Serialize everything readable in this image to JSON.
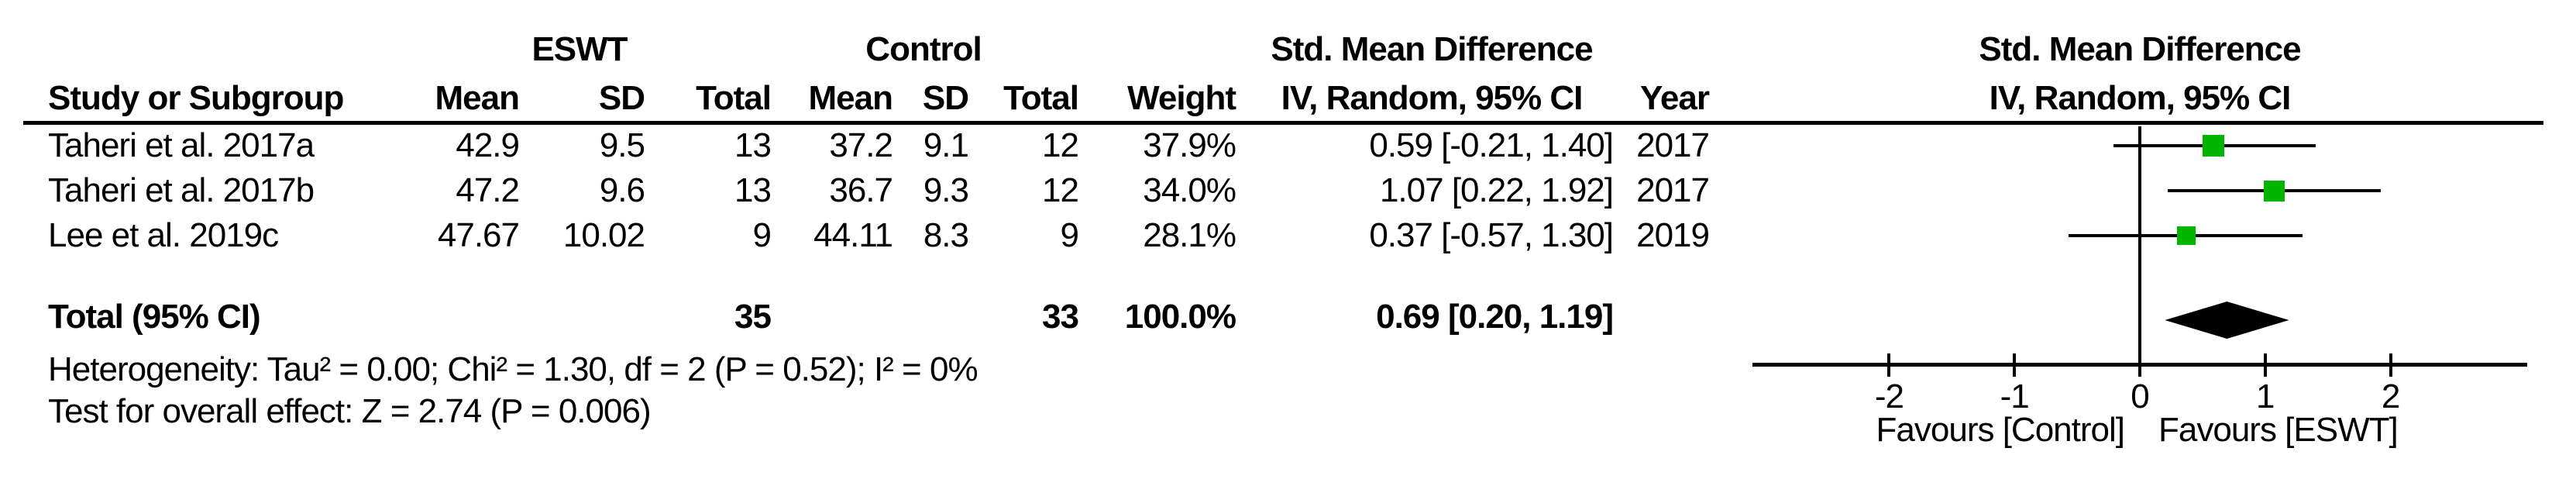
{
  "table": {
    "group1": "ESWT",
    "group2": "Control",
    "effect_header": "Std. Mean Difference",
    "method_header": "IV, Random, 95% CI",
    "cols": {
      "study": "Study or Subgroup",
      "mean": "Mean",
      "sd": "SD",
      "total": "Total",
      "weight": "Weight",
      "year": "Year"
    },
    "rows": [
      {
        "study": "Taheri et al. 2017a",
        "mean1": "42.9",
        "sd1": "9.5",
        "total1": "13",
        "mean2": "37.2",
        "sd2": "9.1",
        "total2": "12",
        "weight": "37.9%",
        "ci": "0.59 [-0.21, 1.40]",
        "year": "2017"
      },
      {
        "study": "Taheri et al. 2017b",
        "mean1": "47.2",
        "sd1": "9.6",
        "total1": "13",
        "mean2": "36.7",
        "sd2": "9.3",
        "total2": "12",
        "weight": "34.0%",
        "ci": "1.07 [0.22, 1.92]",
        "year": "2017"
      },
      {
        "study": "Lee et al. 2019c",
        "mean1": "47.67",
        "sd1": "10.02",
        "total1": "9",
        "mean2": "44.11",
        "sd2": "8.3",
        "total2": "9",
        "weight": "28.1%",
        "ci": "0.37 [-0.57, 1.30]",
        "year": "2019"
      }
    ],
    "total_row": {
      "label": "Total (95% CI)",
      "total1": "35",
      "total2": "33",
      "weight": "100.0%",
      "ci": "0.69 [0.20, 1.19]"
    },
    "footnotes": {
      "heterogeneity": "Heterogeneity: Tau² = 0.00; Chi² = 1.30, df = 2 (P = 0.52); I² = 0%",
      "overall_effect": "Test for overall effect: Z = 2.74 (P = 0.006)"
    }
  },
  "chart_data": {
    "type": "forest",
    "title": "Std. Mean Difference",
    "method": "IV, Random, 95% CI",
    "studies": [
      {
        "label": "Taheri et al. 2017a",
        "estimate": 0.59,
        "ci_low": -0.21,
        "ci_high": 1.4,
        "weight_pct": 37.9,
        "year": "2017"
      },
      {
        "label": "Taheri et al. 2017b",
        "estimate": 1.07,
        "ci_low": 0.22,
        "ci_high": 1.92,
        "weight_pct": 34.0,
        "year": "2017"
      },
      {
        "label": "Lee et al. 2019c",
        "estimate": 0.37,
        "ci_low": -0.57,
        "ci_high": 1.3,
        "weight_pct": 28.1,
        "year": "2019"
      }
    ],
    "total": {
      "label": "Total (95% CI)",
      "estimate": 0.69,
      "ci_low": 0.2,
      "ci_high": 1.19,
      "weight_pct": 100.0
    },
    "xlim": [
      -3.09,
      3.09
    ],
    "ticks": [
      -2,
      -1,
      0,
      1,
      2
    ],
    "tick_labels": [
      "-2",
      "-1",
      "0",
      "1",
      "2"
    ],
    "favours_left": "Favours [Control]",
    "favours_right": "Favours [ESWT]",
    "marker_color": "#00b400",
    "diamond_color": "#000000",
    "grid": false,
    "axis_line": true
  }
}
